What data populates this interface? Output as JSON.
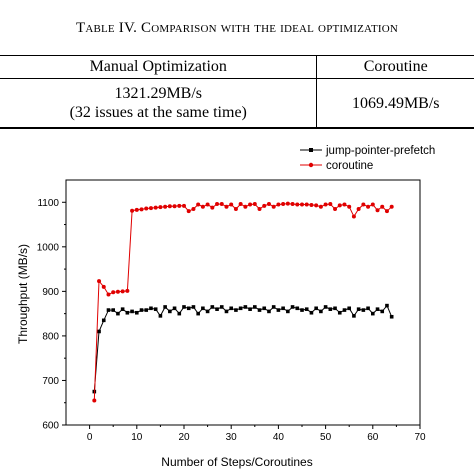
{
  "caption": {
    "prefix": "T",
    "word": "able IV. ",
    "rest": "Comparison with the ideal optimization"
  },
  "table": {
    "headers": [
      "Manual Optimization",
      "Coroutine"
    ],
    "manual_value": "1321.29MB/s",
    "manual_note": "(32 issues at the same time)",
    "coroutine_value": "1069.49MB/s"
  },
  "chart_data": {
    "type": "line",
    "xlabel": "Number of Steps/Coroutines",
    "ylabel": "Throughput (MB/s)",
    "xlim": [
      -5,
      70
    ],
    "ylim": [
      600,
      1150
    ],
    "xticks": [
      0,
      10,
      20,
      30,
      40,
      50,
      60,
      70
    ],
    "yticks": [
      600,
      700,
      800,
      900,
      1000,
      1100
    ],
    "legend": "top-right",
    "grid": false,
    "x": [
      1,
      2,
      3,
      4,
      5,
      6,
      7,
      8,
      9,
      10,
      11,
      12,
      13,
      14,
      15,
      16,
      17,
      18,
      19,
      20,
      21,
      22,
      23,
      24,
      25,
      26,
      27,
      28,
      29,
      30,
      31,
      32,
      33,
      34,
      35,
      36,
      37,
      38,
      39,
      40,
      41,
      42,
      43,
      44,
      45,
      46,
      47,
      48,
      49,
      50,
      51,
      52,
      53,
      54,
      55,
      56,
      57,
      58,
      59,
      60,
      61,
      62,
      63,
      64
    ],
    "series": [
      {
        "name": "jump-pointer-prefetch",
        "color": "#000000",
        "marker": "square",
        "values": [
          675,
          810,
          835,
          858,
          858,
          850,
          860,
          852,
          855,
          852,
          858,
          858,
          862,
          860,
          845,
          865,
          855,
          862,
          850,
          865,
          862,
          865,
          850,
          862,
          855,
          865,
          860,
          865,
          855,
          862,
          858,
          862,
          865,
          860,
          865,
          858,
          862,
          855,
          865,
          858,
          862,
          855,
          865,
          862,
          858,
          860,
          852,
          862,
          855,
          865,
          860,
          862,
          852,
          858,
          862,
          845,
          860,
          858,
          862,
          850,
          860,
          855,
          868,
          843
        ]
      },
      {
        "name": "coroutine",
        "color": "#e00000",
        "marker": "circle",
        "values": [
          655,
          923,
          910,
          893,
          898,
          899,
          900,
          901,
          1081,
          1083,
          1084,
          1086,
          1087,
          1088,
          1089,
          1090,
          1091,
          1091,
          1092,
          1092,
          1080,
          1085,
          1095,
          1090,
          1095,
          1088,
          1096,
          1096,
          1090,
          1095,
          1085,
          1096,
          1090,
          1095,
          1096,
          1085,
          1092,
          1096,
          1090,
          1095,
          1096,
          1097,
          1096,
          1095,
          1095,
          1095,
          1094,
          1093,
          1090,
          1095,
          1096,
          1085,
          1093,
          1095,
          1090,
          1068,
          1085,
          1095,
          1090,
          1095,
          1082,
          1090,
          1080,
          1090
        ]
      }
    ]
  }
}
